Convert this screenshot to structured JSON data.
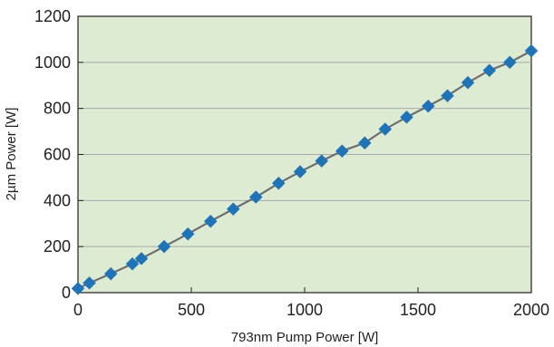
{
  "chart_data": {
    "type": "line",
    "title": "",
    "xlabel": "793nm Pump Power [W]",
    "ylabel": "2µm Power [W]",
    "xlim": [
      0,
      2000
    ],
    "ylim": [
      0,
      1200
    ],
    "x_ticks": [
      0,
      500,
      1000,
      1500,
      2000
    ],
    "y_ticks": [
      0,
      200,
      400,
      600,
      800,
      1000,
      1200
    ],
    "x_tick_labels": [
      "0",
      "500",
      "1000",
      "1500",
      "2000"
    ],
    "y_tick_labels": [
      "0",
      "200",
      "400",
      "600",
      "800",
      "1000",
      "1200"
    ],
    "grid": "horizontal",
    "legend": "none",
    "colors": {
      "plot_background": "#deebd3",
      "marker": "#1f73b7",
      "line": "#6d6e71",
      "grid": "#a7a9ac",
      "axis": "#231f20"
    },
    "series": [
      {
        "marker": "diamond",
        "x": [
          0,
          50,
          145,
          240,
          280,
          380,
          485,
          585,
          685,
          785,
          885,
          980,
          1075,
          1165,
          1265,
          1355,
          1450,
          1545,
          1630,
          1720,
          1815,
          1905,
          2000
        ],
        "y": [
          18,
          42,
          82,
          125,
          148,
          200,
          255,
          310,
          363,
          415,
          475,
          525,
          572,
          615,
          650,
          710,
          762,
          810,
          855,
          912,
          965,
          1000,
          1050
        ]
      }
    ]
  }
}
